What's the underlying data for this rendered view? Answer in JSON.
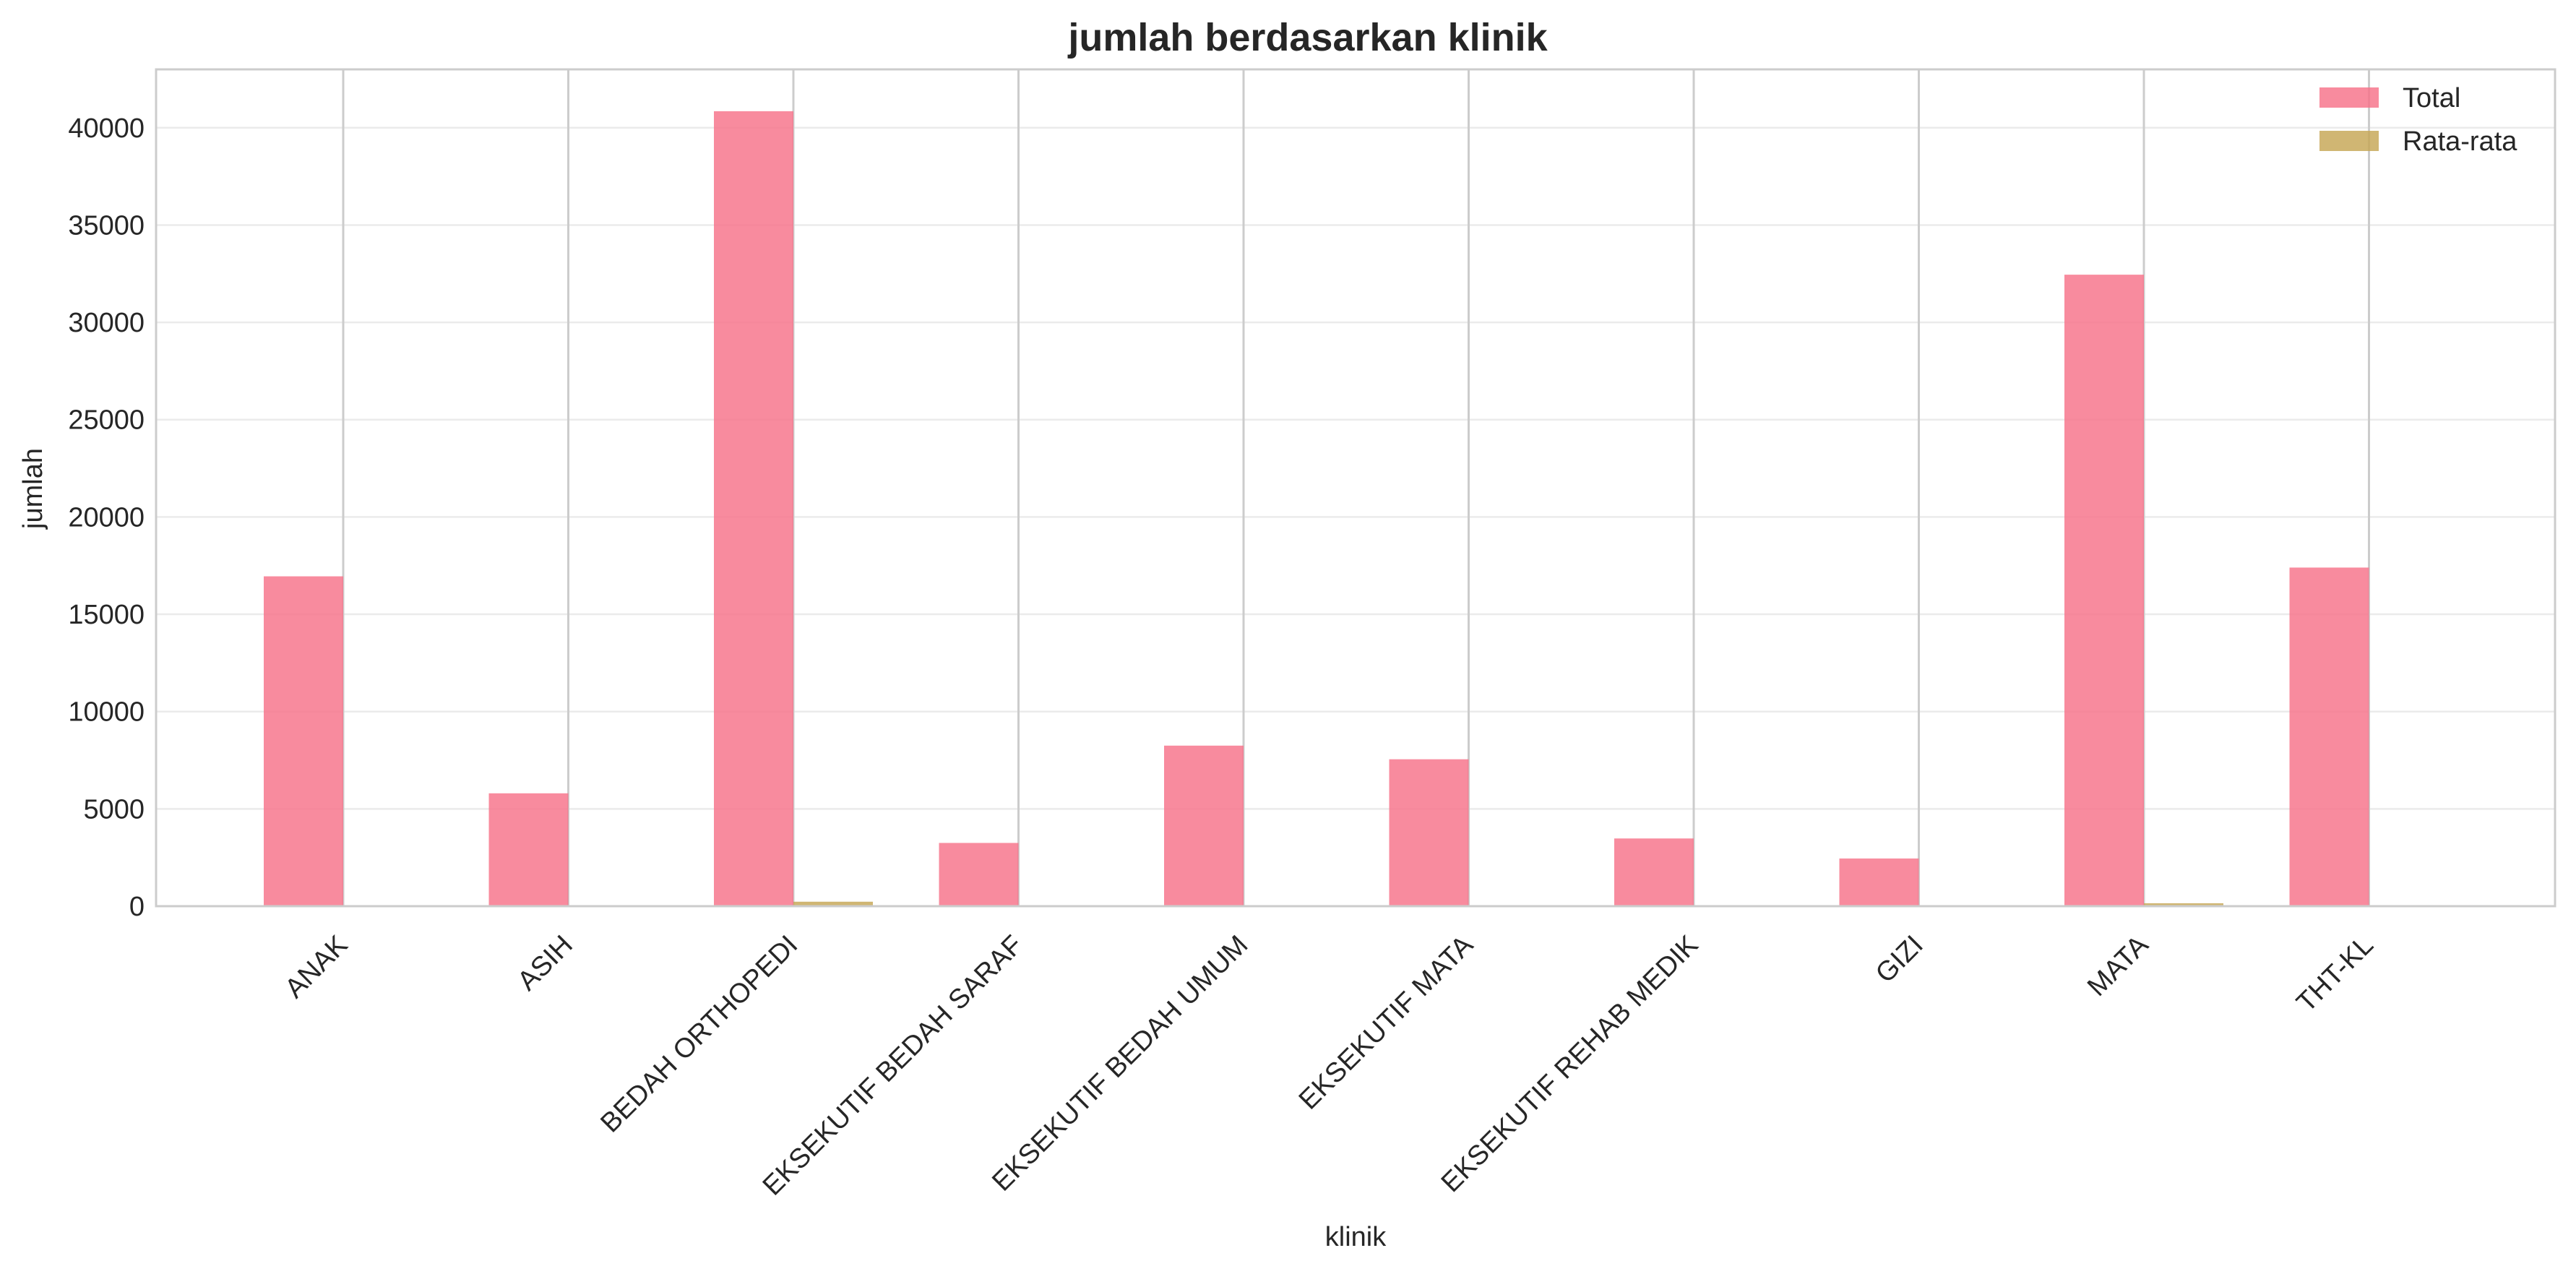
{
  "chart_data": {
    "type": "bar",
    "title": "jumlah berdasarkan klinik",
    "xlabel": "klinik",
    "ylabel": "jumlah",
    "categories": [
      "ANAK",
      "ASIH",
      "BEDAH ORTHOPEDI",
      "EKSEKUTIF BEDAH SARAF",
      "EKSEKUTIF BEDAH UMUM",
      "EKSEKUTIF MATA",
      "EKSEKUTIF REHAB MEDIK",
      "GIZI",
      "MATA",
      "THT-KL"
    ],
    "series": [
      {
        "name": "Total",
        "color": "#f77189",
        "values": [
          16950,
          5800,
          40850,
          3250,
          8250,
          7550,
          3480,
          2450,
          32450,
          17400
        ]
      },
      {
        "name": "Rata-rata",
        "color": "#c6a654",
        "values": [
          20,
          20,
          230,
          20,
          20,
          20,
          20,
          20,
          150,
          20
        ]
      }
    ],
    "ylim": [
      0,
      43000
    ],
    "yticks": [
      0,
      5000,
      10000,
      15000,
      20000,
      25000,
      30000,
      35000,
      40000
    ],
    "grid": true,
    "legend": "top-right"
  }
}
